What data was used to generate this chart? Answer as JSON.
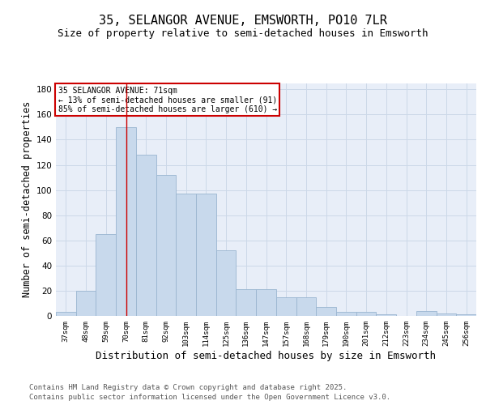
{
  "title": "35, SELANGOR AVENUE, EMSWORTH, PO10 7LR",
  "subtitle": "Size of property relative to semi-detached houses in Emsworth",
  "xlabel": "Distribution of semi-detached houses by size in Emsworth",
  "ylabel": "Number of semi-detached properties",
  "categories": [
    "37sqm",
    "48sqm",
    "59sqm",
    "70sqm",
    "81sqm",
    "92sqm",
    "103sqm",
    "114sqm",
    "125sqm",
    "136sqm",
    "147sqm",
    "157sqm",
    "168sqm",
    "179sqm",
    "190sqm",
    "201sqm",
    "212sqm",
    "223sqm",
    "234sqm",
    "245sqm",
    "256sqm"
  ],
  "values": [
    3,
    20,
    65,
    150,
    128,
    112,
    97,
    97,
    52,
    21,
    21,
    15,
    15,
    7,
    3,
    3,
    1,
    0,
    4,
    2,
    1
  ],
  "bar_color": "#c8d9ec",
  "bar_edge_color": "#9ab5d0",
  "grid_color": "#ccd8e8",
  "bg_color": "#e8eef8",
  "vline_x": 3,
  "vline_color": "#cc0000",
  "annotation_title": "35 SELANGOR AVENUE: 71sqm",
  "annotation_line2": "← 13% of semi-detached houses are smaller (91)",
  "annotation_line3": "85% of semi-detached houses are larger (610) →",
  "annotation_box_color": "#cc0000",
  "footer_line1": "Contains HM Land Registry data © Crown copyright and database right 2025.",
  "footer_line2": "Contains public sector information licensed under the Open Government Licence v3.0.",
  "ylim": [
    0,
    185
  ],
  "title_fontsize": 11,
  "subtitle_fontsize": 9,
  "axis_label_fontsize": 8.5,
  "tick_fontsize": 6.5,
  "annotation_fontsize": 7,
  "footer_fontsize": 6.5
}
